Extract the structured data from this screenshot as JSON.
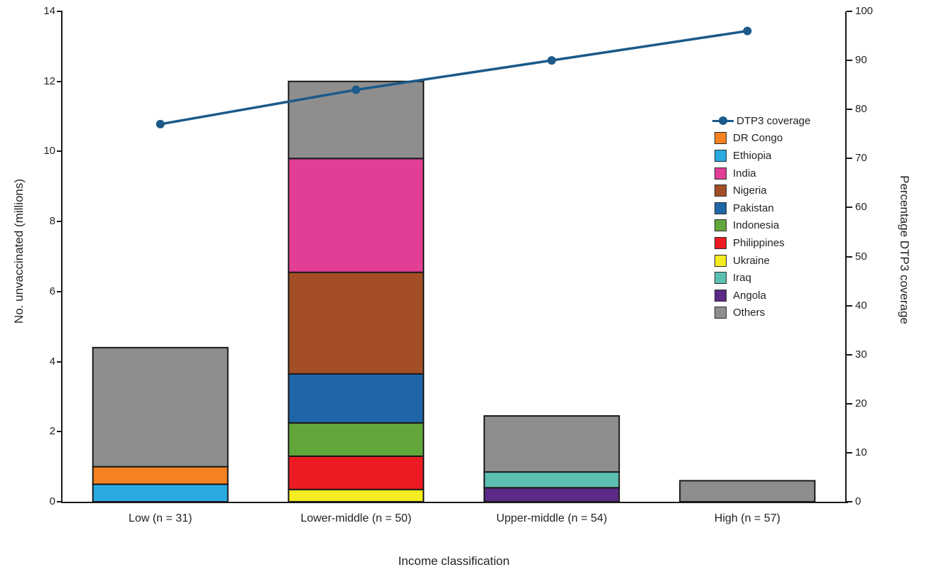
{
  "chart_data": {
    "type": "bar",
    "subtype": "stacked-bar-with-line-overlay",
    "title": "",
    "xlabel": "Income classification",
    "ylabel_left": "No. unvaccinated (millions)",
    "ylabel_right": "Percentage DTP3 coverage",
    "ylim_left": [
      0,
      14
    ],
    "yticks_left": [
      0,
      2,
      4,
      6,
      8,
      10,
      12,
      14
    ],
    "ylim_right": [
      0,
      100
    ],
    "yticks_right": [
      0,
      10,
      20,
      30,
      40,
      50,
      60,
      70,
      80,
      90,
      100
    ],
    "grid": false,
    "categories": [
      "Low (n = 31)",
      "Lower-middle (n = 50)",
      "Upper-middle (n = 54)",
      "High (n = 57)"
    ],
    "series": [
      {
        "name": "Ethiopia",
        "color": "#29ABE2",
        "values": [
          0.5,
          0,
          0,
          0
        ]
      },
      {
        "name": "DR Congo",
        "color": "#F58220",
        "values": [
          0.5,
          0,
          0,
          0
        ]
      },
      {
        "name": "Ukraine",
        "color": "#F4EB21",
        "values": [
          0,
          0.35,
          0,
          0
        ]
      },
      {
        "name": "Philippines",
        "color": "#EC1B23",
        "values": [
          0,
          0.95,
          0,
          0
        ]
      },
      {
        "name": "Indonesia",
        "color": "#62A73B",
        "values": [
          0,
          0.95,
          0,
          0
        ]
      },
      {
        "name": "Pakistan",
        "color": "#1F66A9",
        "values": [
          0,
          1.4,
          0,
          0
        ]
      },
      {
        "name": "Nigeria",
        "color": "#A34E26",
        "values": [
          0,
          2.9,
          0,
          0
        ]
      },
      {
        "name": "India",
        "color": "#E23E96",
        "values": [
          0,
          3.25,
          0,
          0
        ]
      },
      {
        "name": "Angola",
        "color": "#5B2A86",
        "values": [
          0,
          0,
          0.4,
          0
        ]
      },
      {
        "name": "Iraq",
        "color": "#5BBFB2",
        "values": [
          0,
          0,
          0.45,
          0
        ]
      },
      {
        "name": "Others",
        "color": "#8E8E8E",
        "values": [
          3.4,
          2.2,
          1.6,
          0.6
        ]
      }
    ],
    "line": {
      "name": "DTP3 coverage",
      "color": "#1B5A8A",
      "values": [
        77,
        84,
        90,
        96
      ]
    },
    "legend": [
      "DTP3 coverage",
      "DR Congo",
      "Ethiopia",
      "India",
      "Nigeria",
      "Pakistan",
      "Indonesia",
      "Philippines",
      "Ukraine",
      "Iraq",
      "Angola",
      "Others"
    ],
    "legend_position": "inside-top-right"
  }
}
